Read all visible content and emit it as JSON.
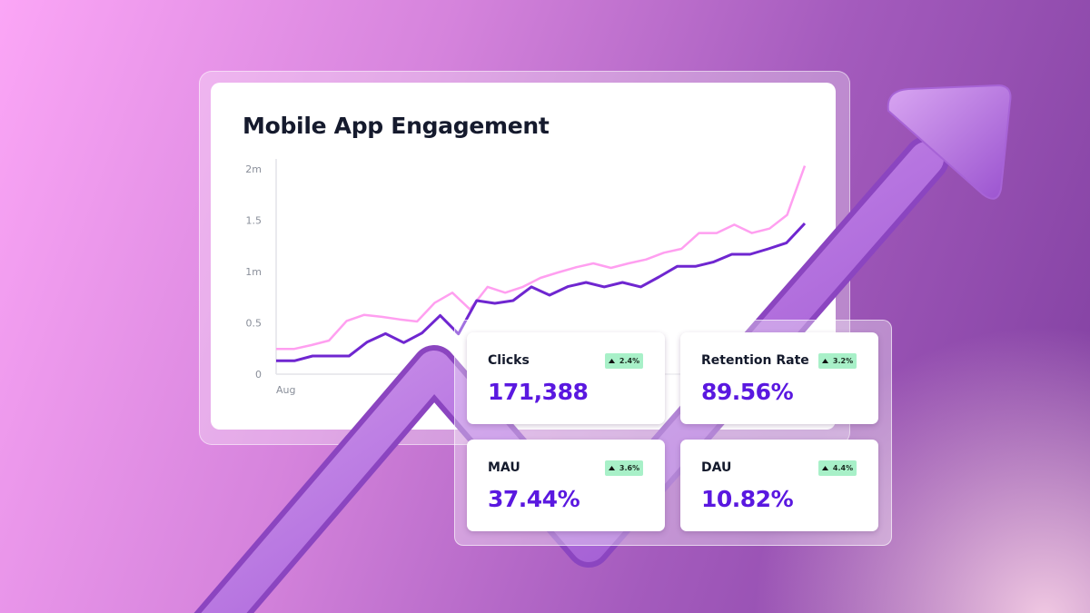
{
  "title": "Mobile App Engagement",
  "colors": {
    "series_light": "#ff9ff0",
    "series_dark": "#6f26d0",
    "value": "#5a18e0",
    "badge_bg": "#a8f0c8"
  },
  "chart_data": {
    "type": "line",
    "title": "Mobile App Engagement",
    "x_tick_labels": [
      "Aug"
    ],
    "y_tick_labels": [
      "0",
      "0.5",
      "1m",
      "1.5",
      "2m"
    ],
    "ylim": [
      0,
      2000000
    ],
    "grid": false,
    "series": [
      {
        "color": "#ff9ff0",
        "values": [
          245000,
          245000,
          283000,
          327000,
          519000,
          578000,
          558000,
          534000,
          513000,
          696000,
          794000,
          631000,
          850000,
          794000,
          850000,
          938000,
          991000,
          1041000,
          1080000,
          1035000,
          1080000,
          1118000,
          1183000,
          1221000,
          1375000,
          1375000,
          1457000,
          1375000,
          1419000,
          1552000,
          2030000
        ]
      },
      {
        "color": "#6f26d0",
        "values": [
          130000,
          130000,
          177000,
          177000,
          177000,
          313000,
          395000,
          307000,
          401000,
          572000,
          392000,
          717000,
          690000,
          717000,
          850000,
          770000,
          853000,
          894000,
          850000,
          894000,
          850000,
          947000,
          1050000,
          1050000,
          1094000,
          1168000,
          1168000,
          1221000,
          1280000,
          1469000
        ]
      }
    ]
  },
  "metrics": [
    {
      "label": "Clicks",
      "value": "171,388",
      "change": "2.4%",
      "trend_icon": "triangle-up"
    },
    {
      "label": "Retention Rate",
      "value": "89.56%",
      "change": "3.2%",
      "trend_icon": "triangle-up"
    },
    {
      "label": "MAU",
      "value": "37.44%",
      "change": "3.6%",
      "trend_icon": "triangle-up"
    },
    {
      "label": "DAU",
      "value": "10.82%",
      "change": "4.4%",
      "trend_icon": "triangle-up"
    }
  ]
}
